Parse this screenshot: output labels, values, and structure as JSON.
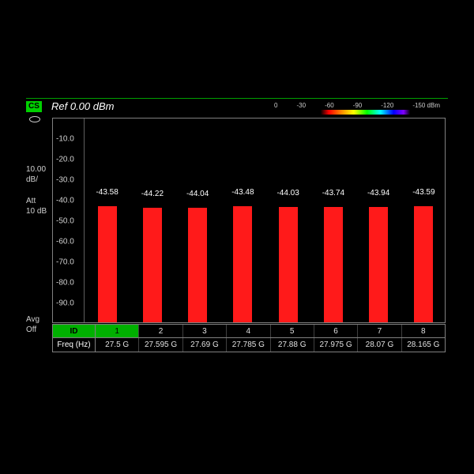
{
  "header": {
    "cs_badge": "CS",
    "ref_label": "Ref 0.00 dBm"
  },
  "colorbar": {
    "ticks": [
      "0",
      "-30",
      "-60",
      "-90",
      "-120",
      "-150 dBm"
    ]
  },
  "left_labels": {
    "scale_value": "10.00",
    "scale_unit": "dB/",
    "att_label": "Att",
    "att_value": "10 dB",
    "avg_label": "Avg",
    "avg_value": "Off"
  },
  "chart": {
    "type": "bar",
    "y_axis": {
      "ticks": [
        -10.0,
        -20.0,
        -30.0,
        -40.0,
        -50.0,
        -60.0,
        -70.0,
        -80.0,
        -90.0
      ],
      "min": -100.0,
      "max": 0.0
    },
    "bars": {
      "values": [
        -43.58,
        -44.22,
        -44.04,
        -43.48,
        -44.03,
        -43.74,
        -43.94,
        -43.59
      ],
      "color": "#ff1a1a",
      "width_frac": 0.42
    },
    "background_color": "#000000",
    "grid_color": "#606060",
    "text_color": "#d0d0d0",
    "label_fontsize": 10
  },
  "table": {
    "id_row": {
      "head": "ID",
      "cells": [
        "1",
        "2",
        "3",
        "4",
        "5",
        "6",
        "7",
        "8"
      ]
    },
    "freq_row": {
      "head": "Freq (Hz)",
      "cells": [
        "27.5 G",
        "27.595 G",
        "27.69 G",
        "27.785 G",
        "27.88 G",
        "27.975 G",
        "28.07 G",
        "28.165 G"
      ]
    }
  }
}
